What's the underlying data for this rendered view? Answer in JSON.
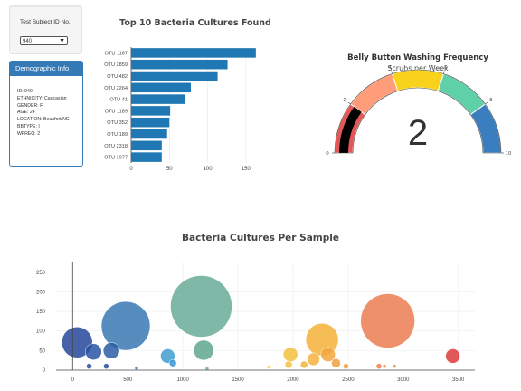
{
  "selector": {
    "label": "Test Subject ID No.:",
    "value": "940"
  },
  "demographic": {
    "heading": "Demographic Info",
    "lines": [
      "ID: 940",
      "ETHNICITY: Caucasian",
      "GENDER: F",
      "AGE: 24",
      "LOCATION: Beaufort/NC",
      "BBTYPE: I",
      "WFREQ: 2"
    ]
  },
  "chart_data": [
    {
      "type": "bar",
      "orientation": "horizontal",
      "title": "Top 10 Bacteria Cultures Found",
      "categories": [
        "OTU 1167",
        "OTU 2859",
        "OTU 482",
        "OTU 2264",
        "OTU 41",
        "OTU 1189",
        "OTU 352",
        "OTU 189",
        "OTU 2318",
        "OTU 1977"
      ],
      "values": [
        163,
        126,
        113,
        78,
        71,
        51,
        50,
        47,
        40,
        40
      ],
      "xlim": [
        0,
        175
      ],
      "xticks": [
        0,
        50,
        100,
        150
      ],
      "color": "#1f77b4"
    },
    {
      "type": "gauge",
      "title": "Belly Button Washing Frequency",
      "subtitle": "Scrubs per Week",
      "value": 2,
      "range": [
        0,
        10
      ],
      "ticks": [
        0,
        2,
        4,
        6,
        8,
        10
      ],
      "bands": [
        {
          "from": 0,
          "to": 2,
          "color": "#e45756"
        },
        {
          "from": 2,
          "to": 4,
          "color": "#ff9c7a"
        },
        {
          "from": 4,
          "to": 6,
          "color": "#f8d21b"
        },
        {
          "from": 6,
          "to": 8,
          "color": "#5fd0a8"
        },
        {
          "from": 8,
          "to": 10,
          "color": "#3b7ec0"
        }
      ],
      "bar_color": "#000000"
    },
    {
      "type": "scatter",
      "subtype": "bubble",
      "title": "Bacteria Cultures Per Sample",
      "xlim": [
        -150,
        3650
      ],
      "ylim": [
        0,
        275
      ],
      "xticks": [
        0,
        500,
        1000,
        1500,
        2000,
        2500,
        3000,
        3500
      ],
      "yticks": [
        0,
        50,
        100,
        150,
        200,
        250
      ],
      "points": [
        {
          "x": 1167,
          "y": 163,
          "r": 34,
          "color": "#6aab98"
        },
        {
          "x": 482,
          "y": 113,
          "r": 27,
          "color": "#3a78b4"
        },
        {
          "x": 2859,
          "y": 126,
          "r": 30,
          "color": "#ec7d52"
        },
        {
          "x": 2264,
          "y": 78,
          "r": 18,
          "color": "#f5b23a"
        },
        {
          "x": 41,
          "y": 71,
          "r": 17,
          "color": "#26489a"
        },
        {
          "x": 352,
          "y": 50,
          "r": 9,
          "color": "#2c5da6"
        },
        {
          "x": 189,
          "y": 47,
          "r": 9,
          "color": "#2a55a2"
        },
        {
          "x": 1189,
          "y": 51,
          "r": 11,
          "color": "#5fa68d"
        },
        {
          "x": 2318,
          "y": 40,
          "r": 8,
          "color": "#f3a63c"
        },
        {
          "x": 1977,
          "y": 40,
          "r": 8,
          "color": "#f3c13e"
        },
        {
          "x": 863,
          "y": 36,
          "r": 8,
          "color": "#3e9fd0"
        },
        {
          "x": 2186,
          "y": 28,
          "r": 7,
          "color": "#f3b23e"
        },
        {
          "x": 3450,
          "y": 36,
          "r": 8,
          "color": "#dc3b3b"
        },
        {
          "x": 910,
          "y": 18,
          "r": 4,
          "color": "#3a95d2"
        },
        {
          "x": 150,
          "y": 10,
          "r": 3,
          "color": "#2a4c9c"
        },
        {
          "x": 305,
          "y": 10,
          "r": 3,
          "color": "#2a4c9c"
        },
        {
          "x": 1960,
          "y": 14,
          "r": 4,
          "color": "#f4c13a"
        },
        {
          "x": 2100,
          "y": 14,
          "r": 4,
          "color": "#f3b43a"
        },
        {
          "x": 2390,
          "y": 18,
          "r": 5,
          "color": "#f0a03e"
        },
        {
          "x": 2480,
          "y": 10,
          "r": 3,
          "color": "#f09c3e"
        },
        {
          "x": 1780,
          "y": 8,
          "r": 2,
          "color": "#f5d23a"
        },
        {
          "x": 2780,
          "y": 10,
          "r": 3,
          "color": "#ee8048"
        },
        {
          "x": 2830,
          "y": 10,
          "r": 2,
          "color": "#ee8048"
        },
        {
          "x": 2920,
          "y": 10,
          "r": 2,
          "color": "#ee8048"
        },
        {
          "x": 1220,
          "y": 4,
          "r": 2,
          "color": "#6aab98"
        },
        {
          "x": 580,
          "y": 5,
          "r": 2,
          "color": "#3a78b4"
        }
      ]
    }
  ]
}
